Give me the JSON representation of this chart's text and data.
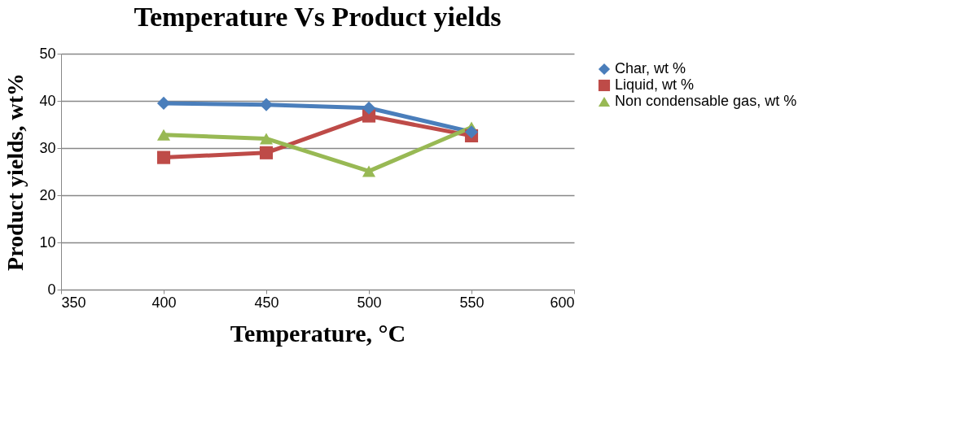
{
  "chart_data": {
    "type": "line",
    "title": "Temperature Vs Product yields",
    "xlabel": "Temperature, °C",
    "ylabel": "Product yields,  wt%",
    "x": [
      400,
      450,
      500,
      550
    ],
    "series": [
      {
        "name": "Char, wt %",
        "color": "#4a7ebb",
        "marker": "diamond",
        "values": [
          39.5,
          39.2,
          38.5,
          33.4
        ]
      },
      {
        "name": "Liquid, wt %",
        "color": "#be4b48",
        "marker": "square",
        "values": [
          28,
          29,
          36.8,
          32.6
        ]
      },
      {
        "name": "Non condensable gas, wt %",
        "color": "#98b954",
        "marker": "triangle",
        "values": [
          32.8,
          32,
          25.1,
          34.4
        ]
      }
    ],
    "xlim": [
      350,
      600
    ],
    "xticks": [
      350,
      400,
      450,
      500,
      550,
      600
    ],
    "ylim": [
      0,
      50
    ],
    "yticks": [
      0,
      10,
      20,
      30,
      40,
      50
    ],
    "grid": "y",
    "legend": "right"
  }
}
